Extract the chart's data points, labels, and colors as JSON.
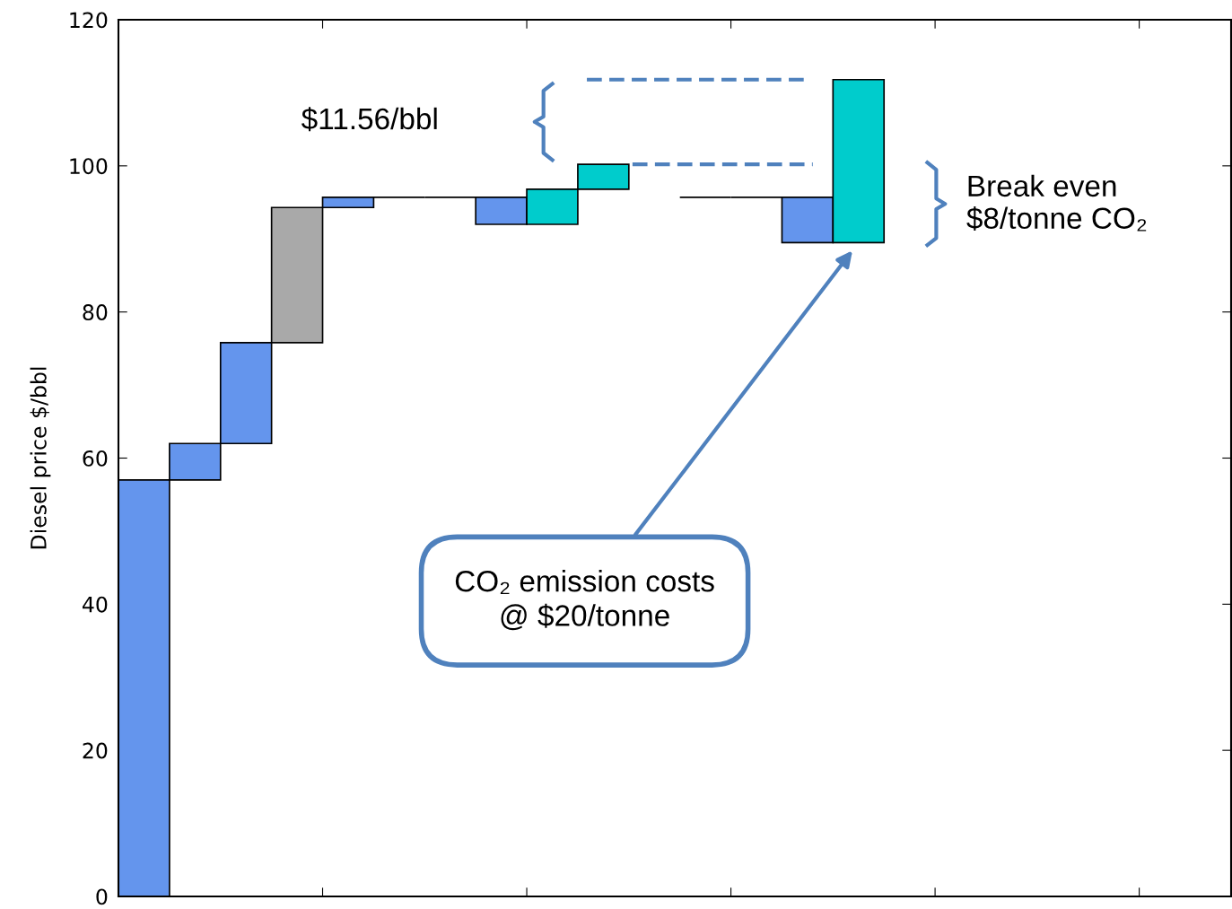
{
  "chart_data": {
    "type": "bar",
    "ylabel": "Diesel price $/bbl",
    "categories": [
      null,
      null,
      null,
      null,
      null,
      null,
      null,
      null,
      null,
      null,
      null,
      null,
      null,
      null,
      null,
      null,
      null,
      null,
      null,
      null,
      null,
      null
    ],
    "series": [
      {
        "base": [
          0,
          57,
          62,
          75.8,
          94.3,
          95.7,
          95.7,
          92,
          92,
          96.8,
          null,
          95.7,
          95.7,
          89.5,
          89.5,
          null,
          null,
          null,
          null,
          null,
          null,
          null
        ],
        "values": [
          57,
          5,
          13.8,
          18.5,
          1.4,
          0,
          0,
          3.7,
          4.8,
          3.4,
          null,
          0,
          0,
          6.2,
          22.3,
          null,
          null,
          null,
          null,
          null,
          null,
          null
        ],
        "colors": [
          "#6495ed",
          "#6495ed",
          "#6495ed",
          "#a9a9a9",
          "#6495ed",
          "#000000",
          "#000000",
          "#6495ed",
          "#00cccc",
          "#00cccc",
          null,
          "#000000",
          "#000000",
          "#6495ed",
          "#00cccc",
          null,
          null,
          null,
          null,
          null,
          null,
          null
        ]
      }
    ],
    "ref_lines": [
      {
        "axis": "y",
        "value": 111.8,
        "color": "#4f81bd",
        "line_style": "dashed"
      },
      {
        "axis": "y",
        "value": 100.2,
        "color": "#4f81bd",
        "line_style": "dashed"
      }
    ],
    "annotations": [
      "$11.56/bbl",
      "Break even\n$8/tonne CO₂",
      "CO₂ emission costs\n@ $20/tonne"
    ],
    "ylim": [
      0,
      120
    ],
    "yticks": [
      0,
      20,
      40,
      60,
      80,
      100,
      120
    ],
    "grid": false,
    "tick_labels": "y"
  }
}
